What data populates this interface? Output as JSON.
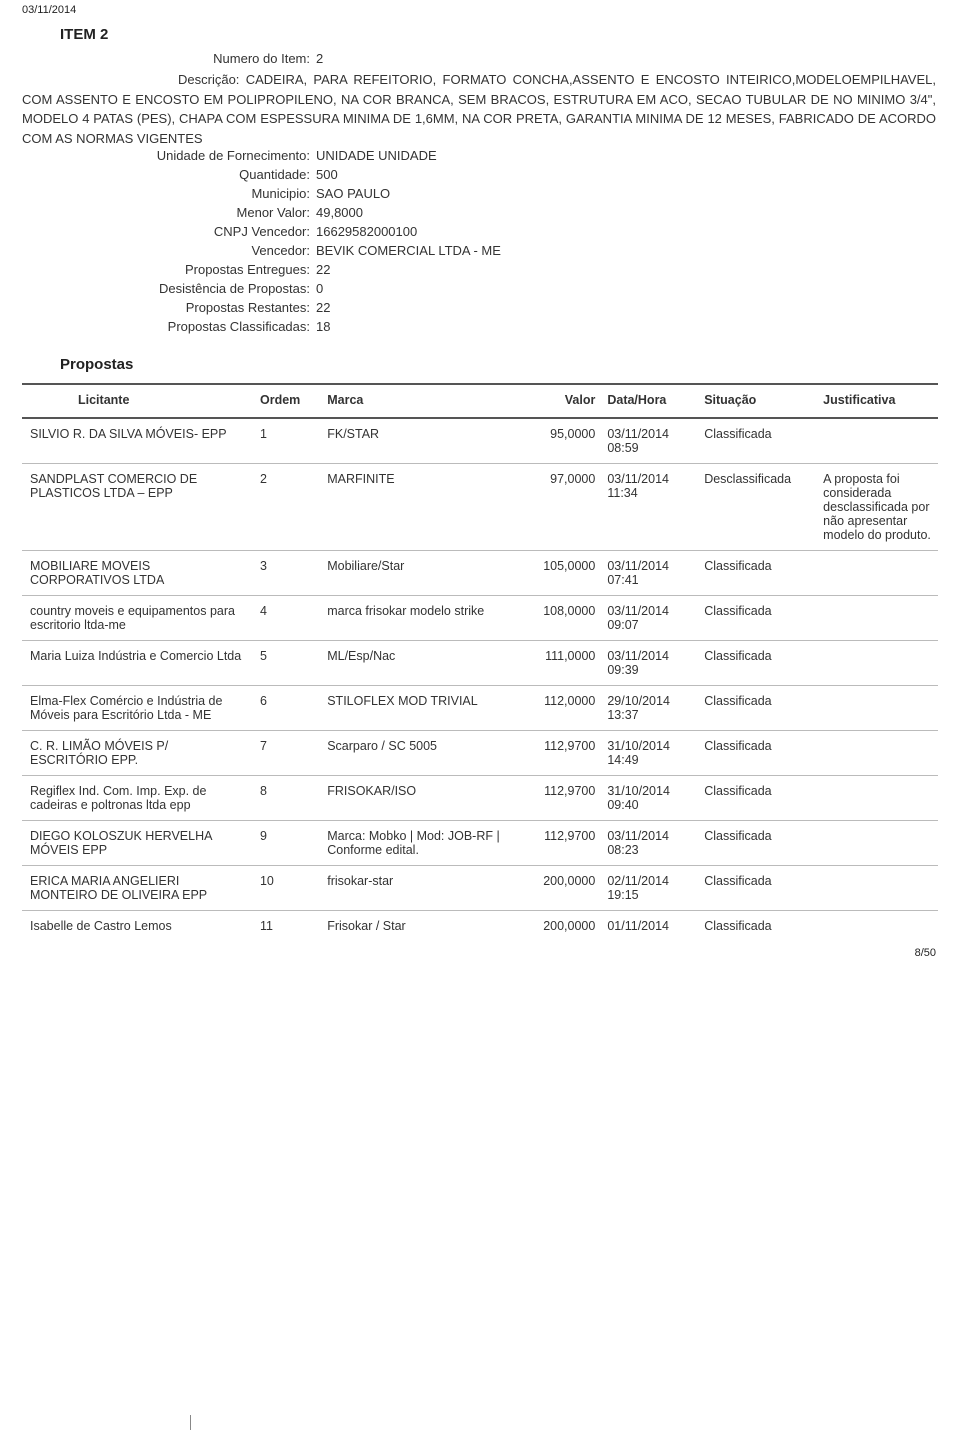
{
  "header": {
    "date": "03/11/2014"
  },
  "item": {
    "title": "ITEM 2",
    "fields": {
      "numero_label": "Numero do Item:",
      "numero": "2",
      "descricao_label": "Descrição:",
      "descricao": "CADEIRA, PARA REFEITORIO, FORMATO CONCHA,ASSENTO E ENCOSTO INTEIRICO,MODELOEMPILHAVEL, COM ASSENTO E ENCOSTO EM POLIPROPILENO, NA COR BRANCA, SEM BRACOS, ESTRUTURA EM ACO, SECAO TUBULAR DE NO MINIMO 3/4\", MODELO 4 PATAS (PES), CHAPA COM ESPESSURA MINIMA DE 1,6MM, NA COR PRETA, GARANTIA MINIMA DE 12 MESES, FABRICADO DE ACORDO COM AS NORMAS VIGENTES",
      "unidade_label": "Unidade de Fornecimento:",
      "unidade": "UNIDADE UNIDADE",
      "qtd_label": "Quantidade:",
      "qtd": "500",
      "municipio_label": "Municipio:",
      "municipio": "SAO PAULO",
      "menor_label": "Menor Valor:",
      "menor": "49,8000",
      "cnpj_label": "CNPJ Vencedor:",
      "cnpj": "16629582000100",
      "vencedor_label": "Vencedor:",
      "vencedor": "BEVIK COMERCIAL LTDA - ME",
      "entregues_label": "Propostas Entregues:",
      "entregues": "22",
      "desist_label": "Desistência de Propostas:",
      "desist": "0",
      "restantes_label": "Propostas Restantes:",
      "restantes": "22",
      "classif_label": "Propostas Classificadas:",
      "classif": "18"
    }
  },
  "propostas": {
    "heading": "Propostas",
    "columns": {
      "licitante": "Licitante",
      "ordem": "Ordem",
      "marca": "Marca",
      "valor": "Valor",
      "datahora": "Data/Hora",
      "situacao": "Situação",
      "justificativa": "Justificativa"
    },
    "rows": [
      {
        "licitante": "SILVIO R. DA SILVA MÓVEIS- EPP",
        "ordem": "1",
        "marca": "FK/STAR",
        "valor": "95,0000",
        "data": "03/11/2014",
        "hora": "08:59",
        "situacao": "Classificada",
        "just": ""
      },
      {
        "licitante": "SANDPLAST COMERCIO DE PLASTICOS LTDA – EPP",
        "ordem": "2",
        "marca": "MARFINITE",
        "valor": "97,0000",
        "data": "03/11/2014",
        "hora": "11:34",
        "situacao": "Desclassificada",
        "just": "A proposta foi considerada desclassificada por não apresentar modelo do produto."
      },
      {
        "licitante": "MOBILIARE MOVEIS CORPORATIVOS LTDA",
        "ordem": "3",
        "marca": "Mobiliare/Star",
        "valor": "105,0000",
        "data": "03/11/2014",
        "hora": "07:41",
        "situacao": "Classificada",
        "just": ""
      },
      {
        "licitante": "country moveis e equipamentos para escritorio ltda-me",
        "ordem": "4",
        "marca": "marca frisokar modelo strike",
        "valor": "108,0000",
        "data": "03/11/2014",
        "hora": "09:07",
        "situacao": "Classificada",
        "just": ""
      },
      {
        "licitante": "Maria Luiza Indústria e Comercio Ltda",
        "ordem": "5",
        "marca": "ML/Esp/Nac",
        "valor": "111,0000",
        "data": "03/11/2014",
        "hora": "09:39",
        "situacao": "Classificada",
        "just": ""
      },
      {
        "licitante": "Elma-Flex Comércio e Indústria de Móveis para Escritório Ltda - ME",
        "ordem": "6",
        "marca": "STILOFLEX MOD TRIVIAL",
        "valor": "112,0000",
        "data": "29/10/2014",
        "hora": "13:37",
        "situacao": "Classificada",
        "just": ""
      },
      {
        "licitante": "C. R. LIMÃO MÓVEIS P/ ESCRITÓRIO EPP.",
        "ordem": "7",
        "marca": "Scarparo / SC 5005",
        "valor": "112,9700",
        "data": "31/10/2014",
        "hora": "14:49",
        "situacao": "Classificada",
        "just": ""
      },
      {
        "licitante": "Regiflex Ind. Com. Imp. Exp. de cadeiras e poltronas ltda epp",
        "ordem": "8",
        "marca": "FRISOKAR/ISO",
        "valor": "112,9700",
        "data": "31/10/2014",
        "hora": "09:40",
        "situacao": "Classificada",
        "just": ""
      },
      {
        "licitante": "DIEGO KOLOSZUK HERVELHA MÓVEIS EPP",
        "ordem": "9",
        "marca": "Marca: Mobko | Mod: JOB-RF | Conforme edital.",
        "valor": "112,9700",
        "data": "03/11/2014",
        "hora": "08:23",
        "situacao": "Classificada",
        "just": ""
      },
      {
        "licitante": "ERICA MARIA ANGELIERI MONTEIRO DE OLIVEIRA EPP",
        "ordem": "10",
        "marca": "frisokar-star",
        "valor": "200,0000",
        "data": "02/11/2014",
        "hora": "19:15",
        "situacao": "Classificada",
        "just": ""
      },
      {
        "licitante": "Isabelle de Castro Lemos",
        "ordem": "11",
        "marca": "Frisokar / Star",
        "valor": "200,0000",
        "data": "01/11/2014",
        "hora": "",
        "situacao": "Classificada",
        "just": ""
      }
    ]
  },
  "footer": {
    "pagenum": "8/50"
  }
}
